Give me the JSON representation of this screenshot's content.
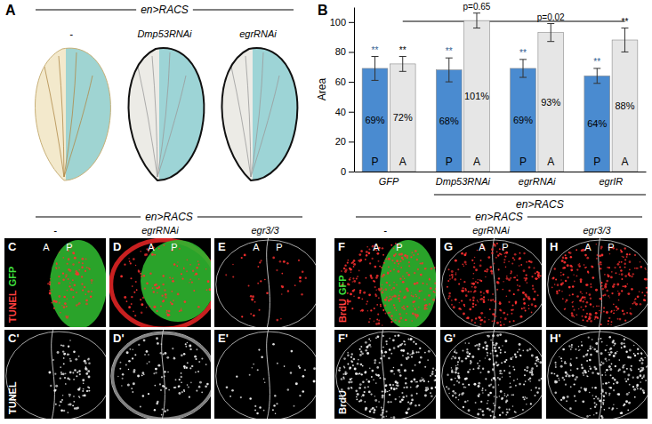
{
  "chart_data": {
    "type": "bar",
    "y_label": "Area",
    "x_label": "en>RACS",
    "categories": [
      "GFP",
      "Dmp53RNAi",
      "egrRNAi",
      "egrIR"
    ],
    "series": [
      {
        "name": "P",
        "color": "#4a8bd0",
        "values": [
          69,
          68,
          69,
          64
        ],
        "value_labels": [
          "69%",
          "68%",
          "69%",
          "64%"
        ],
        "errors": [
          8,
          8,
          6,
          5
        ],
        "annotations": [
          "**",
          "**",
          "**",
          "**"
        ]
      },
      {
        "name": "A",
        "color": "#e6e6e6",
        "values": [
          72,
          101,
          93,
          88
        ],
        "value_labels": [
          "72%",
          "101%",
          "93%",
          "88%"
        ],
        "errors": [
          5,
          5,
          6,
          8
        ],
        "annotations": [
          "**",
          "p=0.65",
          "p=0.02",
          "**"
        ]
      }
    ],
    "ylim": [
      0,
      110
    ],
    "yticks": [
      0,
      20,
      40,
      60,
      80,
      100
    ],
    "grid": false,
    "data_labels": true
  },
  "figure": {
    "panel_a": {
      "letter": "A",
      "header": "en>RACS",
      "labels": [
        "-",
        "Dmp53RNAi",
        "egrRNAi"
      ]
    },
    "panel_b": {
      "letter": "B"
    },
    "tunel": {
      "header": "en>RACS",
      "labels": [
        "-",
        "egrRNAi",
        "egr3/3"
      ],
      "letters": [
        "C",
        "D",
        "E"
      ],
      "primes": [
        "C'",
        "D'",
        "E'"
      ],
      "stain_top": [
        "TUNEL",
        "GFP"
      ],
      "stain_bottom": "TUNEL",
      "compartments": [
        "A",
        "P"
      ]
    },
    "brdu": {
      "header": "en>RACS",
      "labels": [
        "-",
        "egrRNAi",
        "egr3/3"
      ],
      "letters": [
        "F",
        "G",
        "H"
      ],
      "primes": [
        "F'",
        "G'",
        "H'"
      ],
      "stain_top": [
        "BrdU",
        "GFP"
      ],
      "stain_bottom": "BrdU",
      "compartments": [
        "A",
        "P"
      ]
    }
  }
}
